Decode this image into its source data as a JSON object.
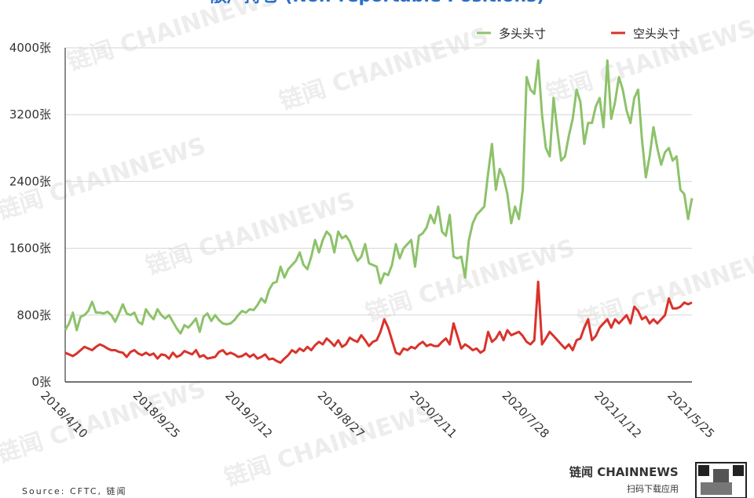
{
  "chart_data": {
    "type": "line",
    "title": "散户持仓 (Non-reportable Positions)",
    "source": "Source: CFTC, 链闻",
    "watermark": "链闻 CHAINNEWS",
    "brand": "链闻 CHAINNEWS",
    "brand_sub": "扫码下载应用",
    "categories": [
      "2018/4/10",
      null,
      null,
      null,
      null,
      null,
      null,
      null,
      null,
      null,
      null,
      null,
      null,
      null,
      null,
      null,
      null,
      null,
      null,
      null,
      null,
      null,
      null,
      null,
      "2018/9/25",
      null,
      null,
      null,
      null,
      null,
      null,
      null,
      null,
      null,
      null,
      null,
      null,
      null,
      null,
      null,
      null,
      null,
      null,
      null,
      null,
      null,
      null,
      null,
      "2019/3/12",
      null,
      null,
      null,
      null,
      null,
      null,
      null,
      null,
      null,
      null,
      null,
      null,
      null,
      null,
      null,
      null,
      null,
      null,
      null,
      null,
      null,
      null,
      null,
      "2019/8/27",
      null,
      null,
      null,
      null,
      null,
      null,
      null,
      null,
      null,
      null,
      null,
      null,
      null,
      null,
      null,
      null,
      null,
      null,
      null,
      null,
      null,
      null,
      null,
      "2020/2/11",
      null,
      null,
      null,
      null,
      null,
      null,
      null,
      null,
      null,
      null,
      null,
      null,
      null,
      null,
      null,
      null,
      null,
      null,
      null,
      null,
      null,
      null,
      null,
      "2020/7/28",
      null,
      null,
      null,
      null,
      null,
      null,
      null,
      null,
      null,
      null,
      null,
      null,
      null,
      null,
      null,
      null,
      null,
      null,
      null,
      null,
      null,
      null,
      null,
      "2021/1/12",
      null,
      null,
      null,
      null,
      null,
      null,
      null,
      null,
      null,
      null,
      null,
      null,
      null,
      null,
      null,
      null,
      null,
      null,
      "2021/5/25"
    ],
    "series": [
      {
        "name": "多头头寸",
        "color": "#8dc26a",
        "values": [
          620,
          700,
          830,
          620,
          780,
          800,
          850,
          960,
          830,
          830,
          820,
          840,
          800,
          720,
          820,
          930,
          820,
          800,
          830,
          720,
          690,
          870,
          800,
          750,
          870,
          800,
          760,
          800,
          720,
          640,
          580,
          680,
          650,
          700,
          760,
          600,
          780,
          820,
          730,
          800,
          740,
          700,
          690,
          700,
          740,
          800,
          850,
          830,
          870,
          860,
          920,
          1000,
          950,
          1100,
          1180,
          1200,
          1380,
          1250,
          1350,
          1400,
          1450,
          1550,
          1400,
          1350,
          1500,
          1700,
          1550,
          1700,
          1800,
          1750,
          1550,
          1800,
          1720,
          1750,
          1680,
          1550,
          1450,
          1500,
          1650,
          1420,
          1400,
          1380,
          1180,
          1300,
          1280,
          1400,
          1650,
          1480,
          1600,
          1650,
          1700,
          1380,
          1750,
          1780,
          1850,
          2000,
          1900,
          2100,
          1800,
          1750,
          2000,
          1500,
          1480,
          1500,
          1250,
          1700,
          1900,
          2000,
          2050,
          2100,
          2500,
          2850,
          2300,
          2550,
          2450,
          2250,
          1900,
          2100,
          1950,
          2300,
          3650,
          3500,
          3450,
          3850,
          3200,
          2800,
          2700,
          3400,
          3000,
          2650,
          2700,
          2950,
          3150,
          3500,
          3350,
          2850,
          3100,
          3100,
          3300,
          3400,
          3050,
          3850,
          3150,
          3350,
          3650,
          3500,
          3250,
          3100,
          3400,
          3500,
          2900,
          2450,
          2700,
          3050,
          2800,
          2600,
          2750,
          2800,
          2650,
          2700,
          2300,
          2250,
          1950,
          2200
        ]
      },
      {
        "name": "空头头寸",
        "color": "#d9332b",
        "values": [
          350,
          330,
          310,
          340,
          380,
          420,
          400,
          380,
          420,
          450,
          430,
          400,
          380,
          380,
          360,
          350,
          300,
          360,
          380,
          340,
          320,
          350,
          320,
          340,
          280,
          330,
          320,
          280,
          350,
          300,
          320,
          370,
          350,
          330,
          380,
          300,
          320,
          280,
          290,
          300,
          360,
          380,
          330,
          350,
          330,
          300,
          310,
          340,
          300,
          330,
          280,
          300,
          330,
          270,
          280,
          250,
          230,
          280,
          320,
          380,
          350,
          400,
          370,
          420,
          380,
          440,
          480,
          450,
          520,
          480,
          430,
          500,
          420,
          450,
          530,
          500,
          480,
          560,
          500,
          430,
          480,
          500,
          600,
          750,
          650,
          500,
          350,
          330,
          400,
          380,
          420,
          400,
          450,
          480,
          430,
          450,
          430,
          430,
          480,
          520,
          450,
          700,
          550,
          400,
          450,
          420,
          380,
          400,
          350,
          380,
          600,
          480,
          520,
          600,
          500,
          620,
          560,
          580,
          600,
          550,
          480,
          450,
          500,
          1200,
          450,
          520,
          600,
          550,
          500,
          450,
          400,
          450,
          380,
          500,
          520,
          650,
          750,
          500,
          550,
          650,
          700,
          750,
          650,
          750,
          700,
          750,
          800,
          700,
          900,
          850,
          750,
          780,
          700,
          750,
          700,
          750,
          800,
          1000,
          880,
          880,
          900,
          950,
          930,
          950
        ]
      }
    ],
    "ylim": [
      0,
      4000
    ],
    "yticks": [
      {
        "value": 0,
        "label": "0张"
      },
      {
        "value": 800,
        "label": "800张"
      },
      {
        "value": 1600,
        "label": "1600张"
      },
      {
        "value": 2400,
        "label": "2400张"
      },
      {
        "value": 3200,
        "label": "3200张"
      },
      {
        "value": 4000,
        "label": "4000张"
      }
    ],
    "grid": true
  }
}
